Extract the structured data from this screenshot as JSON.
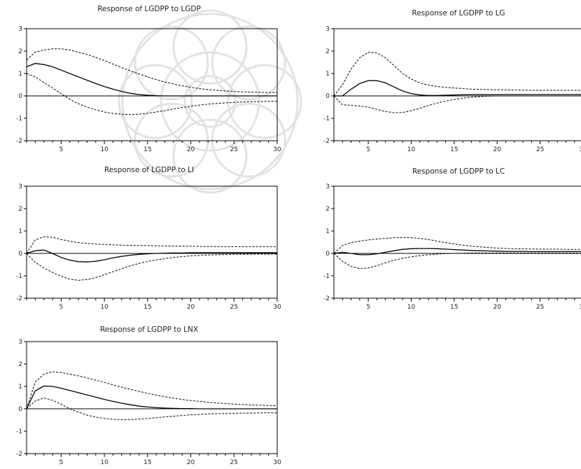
{
  "colors": {
    "irf": "#000000",
    "band": "#000000",
    "zero": "#000000",
    "frame": "#000000",
    "watermark": "#9a9a9a"
  },
  "axis": {
    "xticks": [
      "5",
      "10",
      "15",
      "20",
      "25",
      "30"
    ],
    "yticks": [
      "3",
      "2",
      "1",
      "0",
      "-1",
      "-2"
    ],
    "xlim": [
      1,
      30
    ],
    "ylim": [
      -2,
      3
    ]
  },
  "chart_data": [
    {
      "type": "line",
      "title": "Response of LGDPP to LGDP",
      "x": [
        1,
        2,
        3,
        4,
        5,
        6,
        7,
        8,
        9,
        10,
        11,
        12,
        13,
        14,
        15,
        16,
        17,
        18,
        19,
        20,
        21,
        22,
        23,
        24,
        25,
        26,
        27,
        28,
        29,
        30
      ],
      "series": [
        {
          "role": "response",
          "values": [
            1.3,
            1.45,
            1.4,
            1.3,
            1.15,
            1.0,
            0.85,
            0.7,
            0.55,
            0.42,
            0.3,
            0.2,
            0.12,
            0.06,
            0.03,
            0.01,
            0.0,
            0.0,
            0.0,
            0.0,
            0.0,
            0.0,
            0.0,
            0.0,
            0.0,
            0.0,
            0.0,
            0.0,
            0.0,
            0.0
          ]
        },
        {
          "role": "upper",
          "values": [
            1.6,
            1.95,
            2.05,
            2.1,
            2.1,
            2.05,
            1.95,
            1.85,
            1.72,
            1.58,
            1.42,
            1.27,
            1.12,
            0.98,
            0.85,
            0.73,
            0.62,
            0.53,
            0.45,
            0.38,
            0.33,
            0.28,
            0.25,
            0.22,
            0.2,
            0.18,
            0.17,
            0.16,
            0.15,
            0.15
          ]
        },
        {
          "role": "lower",
          "values": [
            1.0,
            0.85,
            0.6,
            0.35,
            0.1,
            -0.15,
            -0.35,
            -0.5,
            -0.62,
            -0.72,
            -0.78,
            -0.82,
            -0.83,
            -0.82,
            -0.78,
            -0.72,
            -0.66,
            -0.58,
            -0.52,
            -0.46,
            -0.41,
            -0.37,
            -0.34,
            -0.31,
            -0.29,
            -0.27,
            -0.26,
            -0.25,
            -0.24,
            -0.24
          ]
        }
      ]
    },
    {
      "type": "line",
      "title": "Response of LGDPP to LG",
      "x": [
        1,
        2,
        3,
        4,
        5,
        6,
        7,
        8,
        9,
        10,
        11,
        12,
        13,
        14,
        15,
        16,
        17,
        18,
        19,
        20,
        21,
        22,
        23,
        24,
        25,
        26,
        27,
        28,
        29,
        30
      ],
      "series": [
        {
          "role": "response",
          "values": [
            0.0,
            0.0,
            0.3,
            0.55,
            0.68,
            0.68,
            0.58,
            0.4,
            0.22,
            0.1,
            0.04,
            0.02,
            0.02,
            0.03,
            0.04,
            0.05,
            0.06,
            0.06,
            0.06,
            0.06,
            0.06,
            0.06,
            0.06,
            0.06,
            0.06,
            0.06,
            0.06,
            0.06,
            0.06,
            0.06
          ]
        },
        {
          "role": "upper",
          "values": [
            0.0,
            0.5,
            1.2,
            1.7,
            1.95,
            1.92,
            1.7,
            1.35,
            1.0,
            0.75,
            0.58,
            0.48,
            0.42,
            0.38,
            0.35,
            0.33,
            0.3,
            0.29,
            0.28,
            0.27,
            0.27,
            0.26,
            0.26,
            0.25,
            0.25,
            0.25,
            0.25,
            0.25,
            0.25,
            0.25
          ]
        },
        {
          "role": "lower",
          "values": [
            0.0,
            -0.4,
            -0.42,
            -0.45,
            -0.5,
            -0.6,
            -0.7,
            -0.75,
            -0.74,
            -0.66,
            -0.55,
            -0.43,
            -0.32,
            -0.23,
            -0.16,
            -0.1,
            -0.06,
            -0.03,
            -0.01,
            0.0,
            0.0,
            0.0,
            0.0,
            0.0,
            0.0,
            0.0,
            0.0,
            0.0,
            0.0,
            0.0
          ]
        }
      ]
    },
    {
      "type": "line",
      "title": "Response of LGDPP to LI",
      "x": [
        1,
        2,
        3,
        4,
        5,
        6,
        7,
        8,
        9,
        10,
        11,
        12,
        13,
        14,
        15,
        16,
        17,
        18,
        19,
        20,
        21,
        22,
        23,
        24,
        25,
        26,
        27,
        28,
        29,
        30
      ],
      "series": [
        {
          "role": "response",
          "values": [
            0.0,
            0.12,
            0.15,
            0.0,
            -0.18,
            -0.3,
            -0.37,
            -0.38,
            -0.35,
            -0.28,
            -0.2,
            -0.13,
            -0.08,
            -0.04,
            -0.02,
            0.0,
            0.01,
            0.02,
            0.02,
            0.03,
            0.03,
            0.03,
            0.03,
            0.03,
            0.03,
            0.03,
            0.03,
            0.03,
            0.03,
            0.03
          ]
        },
        {
          "role": "upper",
          "values": [
            0.0,
            0.6,
            0.75,
            0.72,
            0.62,
            0.55,
            0.48,
            0.44,
            0.42,
            0.4,
            0.38,
            0.37,
            0.36,
            0.35,
            0.35,
            0.34,
            0.33,
            0.33,
            0.32,
            0.32,
            0.31,
            0.31,
            0.3,
            0.3,
            0.3,
            0.3,
            0.3,
            0.3,
            0.3,
            0.3
          ]
        },
        {
          "role": "lower",
          "values": [
            0.0,
            -0.4,
            -0.65,
            -0.85,
            -1.02,
            -1.15,
            -1.2,
            -1.17,
            -1.08,
            -0.95,
            -0.82,
            -0.68,
            -0.56,
            -0.45,
            -0.36,
            -0.29,
            -0.23,
            -0.18,
            -0.14,
            -0.11,
            -0.09,
            -0.07,
            -0.06,
            -0.05,
            -0.04,
            -0.04,
            -0.03,
            -0.03,
            -0.03,
            -0.03
          ]
        }
      ]
    },
    {
      "type": "line",
      "title": "Response of LGDPP to LC",
      "x": [
        1,
        2,
        3,
        4,
        5,
        6,
        7,
        8,
        9,
        10,
        11,
        12,
        13,
        14,
        15,
        16,
        17,
        18,
        19,
        20,
        21,
        22,
        23,
        24,
        25,
        26,
        27,
        28,
        29,
        30
      ],
      "series": [
        {
          "role": "response",
          "values": [
            0.0,
            0.05,
            0.0,
            -0.06,
            -0.06,
            -0.02,
            0.05,
            0.12,
            0.18,
            0.21,
            0.22,
            0.22,
            0.21,
            0.19,
            0.17,
            0.15,
            0.13,
            0.12,
            0.11,
            0.1,
            0.09,
            0.09,
            0.09,
            0.08,
            0.08,
            0.08,
            0.08,
            0.08,
            0.08,
            0.08
          ]
        },
        {
          "role": "upper",
          "values": [
            0.0,
            0.35,
            0.48,
            0.55,
            0.6,
            0.64,
            0.67,
            0.7,
            0.71,
            0.7,
            0.67,
            0.62,
            0.55,
            0.48,
            0.42,
            0.37,
            0.32,
            0.29,
            0.26,
            0.24,
            0.22,
            0.21,
            0.2,
            0.2,
            0.19,
            0.19,
            0.19,
            0.18,
            0.18,
            0.18
          ]
        },
        {
          "role": "lower",
          "values": [
            0.0,
            -0.35,
            -0.58,
            -0.68,
            -0.65,
            -0.55,
            -0.42,
            -0.3,
            -0.22,
            -0.15,
            -0.1,
            -0.06,
            -0.03,
            -0.01,
            0.0,
            0.01,
            0.02,
            0.02,
            0.02,
            0.02,
            0.02,
            0.02,
            0.02,
            0.02,
            0.02,
            0.02,
            0.02,
            0.02,
            0.02,
            0.02
          ]
        }
      ]
    },
    {
      "type": "line",
      "title": "Response of LGDPP to LNX",
      "x": [
        1,
        2,
        3,
        4,
        5,
        6,
        7,
        8,
        9,
        10,
        11,
        12,
        13,
        14,
        15,
        16,
        17,
        18,
        19,
        20,
        21,
        22,
        23,
        24,
        25,
        26,
        27,
        28,
        29,
        30
      ],
      "series": [
        {
          "role": "response",
          "values": [
            0.0,
            0.8,
            1.02,
            1.0,
            0.92,
            0.82,
            0.72,
            0.62,
            0.52,
            0.42,
            0.33,
            0.25,
            0.18,
            0.12,
            0.08,
            0.05,
            0.03,
            0.02,
            0.01,
            0.01,
            0.0,
            0.0,
            0.0,
            0.0,
            0.0,
            0.0,
            0.0,
            0.0,
            0.0,
            0.0
          ]
        },
        {
          "role": "upper",
          "values": [
            0.0,
            1.2,
            1.55,
            1.65,
            1.62,
            1.55,
            1.47,
            1.38,
            1.28,
            1.18,
            1.07,
            0.97,
            0.87,
            0.78,
            0.69,
            0.61,
            0.54,
            0.47,
            0.42,
            0.37,
            0.33,
            0.29,
            0.26,
            0.23,
            0.21,
            0.19,
            0.17,
            0.16,
            0.15,
            0.14
          ]
        },
        {
          "role": "lower",
          "values": [
            0.0,
            0.35,
            0.48,
            0.38,
            0.2,
            0.0,
            -0.15,
            -0.28,
            -0.37,
            -0.43,
            -0.47,
            -0.48,
            -0.48,
            -0.46,
            -0.43,
            -0.4,
            -0.36,
            -0.33,
            -0.3,
            -0.27,
            -0.25,
            -0.23,
            -0.22,
            -0.21,
            -0.2,
            -0.19,
            -0.19,
            -0.18,
            -0.18,
            -0.18
          ]
        }
      ]
    }
  ]
}
